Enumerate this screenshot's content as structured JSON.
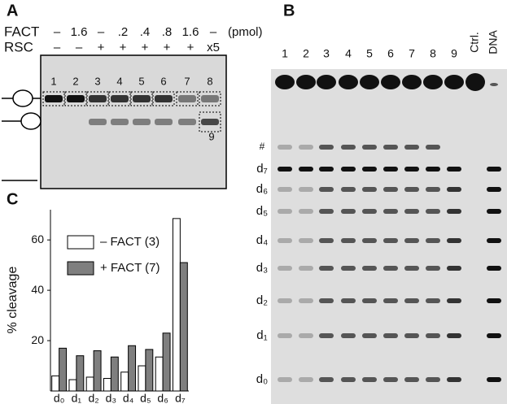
{
  "panel_a": {
    "label": "A",
    "rows": [
      {
        "name": "FACT",
        "values": [
          "–",
          "1.6",
          "–",
          ".2",
          ".4",
          ".8",
          "1.6",
          "–"
        ],
        "unit": "(pmol)"
      },
      {
        "name": "RSC",
        "values": [
          "–",
          "–",
          "+",
          "+",
          "+",
          "+",
          "+",
          "x5"
        ]
      }
    ],
    "lanes": [
      "1",
      "2",
      "3",
      "4",
      "5",
      "6",
      "7",
      "8"
    ],
    "extra_lane": "9"
  },
  "panel_b": {
    "label": "B",
    "lanes": [
      "1",
      "2",
      "3",
      "4",
      "5",
      "6",
      "7",
      "8",
      "9",
      "Ctrl.",
      "DNA"
    ],
    "bands": [
      "#",
      "d₇",
      "d₆",
      "d₅",
      "d₄",
      "d₃",
      "d₂",
      "d₁",
      "d₀"
    ]
  },
  "chart_data": {
    "type": "bar",
    "panel_label": "C",
    "y_label": "% cleavage",
    "categories": [
      "d₀",
      "d₁",
      "d₂",
      "d₃",
      "d₄",
      "d₅",
      "d₆",
      "d₇"
    ],
    "series": [
      {
        "name": "– FACT (3)",
        "color": "#ffffff",
        "values": [
          6,
          4.5,
          5.5,
          5,
          7.5,
          10,
          13.5,
          68.5
        ]
      },
      {
        "name": "+ FACT (7)",
        "color": "#7f7f7f",
        "values": [
          17,
          14,
          16,
          13.5,
          18,
          16.5,
          23,
          51
        ]
      }
    ],
    "ylim": [
      0,
      72
    ],
    "yticks": [
      20,
      40,
      60
    ]
  }
}
